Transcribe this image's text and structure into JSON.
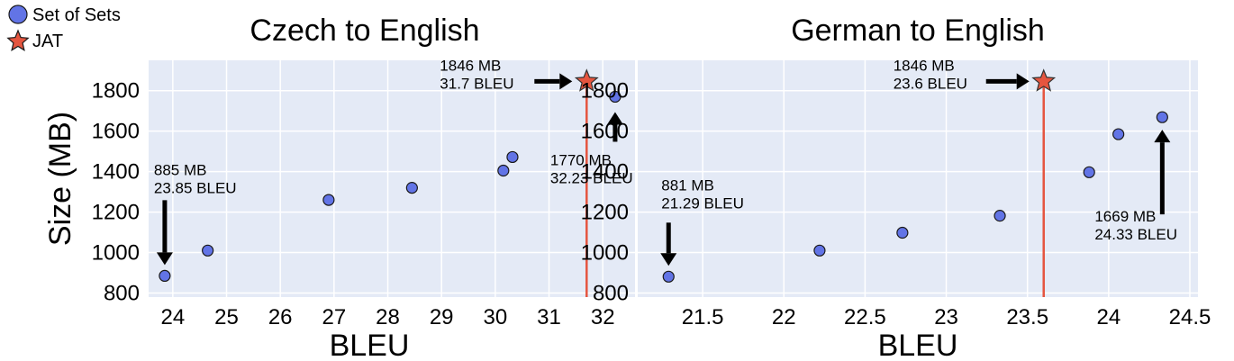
{
  "legend": {
    "items": [
      {
        "label": "Set of Sets",
        "color": "#6274e6",
        "marker": "circle"
      },
      {
        "label": "JAT",
        "color": "#e5553f",
        "marker": "star"
      }
    ]
  },
  "chart_data": [
    {
      "type": "scatter",
      "title": "Czech to English",
      "xlabel": "BLEU",
      "ylabel": "Size (MB)",
      "xlim": [
        23.55,
        32.6
      ],
      "ylim": [
        780,
        1950
      ],
      "xticks": [
        24,
        25,
        26,
        27,
        28,
        29,
        30,
        31,
        32
      ],
      "xtick_labels": [
        "24",
        "25",
        "26",
        "27",
        "28",
        "29",
        "30",
        "31",
        "32"
      ],
      "yticks": [
        800,
        1000,
        1200,
        1400,
        1600,
        1800
      ],
      "ytick_labels": [
        "800",
        "1000",
        "1200",
        "1400",
        "1600",
        "1800"
      ],
      "grid": true,
      "series": [
        {
          "name": "Set of Sets",
          "marker": "circle",
          "color": "#6274e6",
          "x": [
            23.85,
            24.65,
            26.9,
            28.45,
            30.15,
            30.32,
            32.23
          ],
          "y": [
            885,
            1010,
            1260,
            1320,
            1405,
            1472,
            1770
          ]
        },
        {
          "name": "JAT",
          "marker": "star",
          "color": "#e5553f",
          "x": [
            31.7
          ],
          "y": [
            1846
          ]
        }
      ],
      "vline": {
        "x": 31.7,
        "color": "#e5553f"
      },
      "annotations": [
        {
          "lines": [
            "885 MB",
            "23.85 BLEU"
          ],
          "target": [
            23.85,
            885
          ],
          "arrow": "down"
        },
        {
          "lines": [
            "1770 MB",
            "32.23 BLEU"
          ],
          "target": [
            32.23,
            1770
          ],
          "arrow": "up"
        },
        {
          "lines": [
            "1846 MB",
            "31.7 BLEU"
          ],
          "target": [
            31.7,
            1846
          ],
          "arrow": "right"
        }
      ]
    },
    {
      "type": "scatter",
      "title": "German to English",
      "xlabel": "BLEU",
      "ylabel": "",
      "xlim": [
        21.1,
        24.55
      ],
      "ylim": [
        780,
        1950
      ],
      "xticks": [
        21.5,
        22,
        22.5,
        23,
        23.5,
        24,
        24.5
      ],
      "xtick_labels": [
        "21.5",
        "22",
        "22.5",
        "23",
        "23.5",
        "24",
        "24.5"
      ],
      "yticks": [
        800,
        1000,
        1200,
        1400,
        1600,
        1800
      ],
      "ytick_labels": [
        "800",
        "1000",
        "1200",
        "1400",
        "1600",
        "1800"
      ],
      "grid": true,
      "series": [
        {
          "name": "Set of Sets",
          "marker": "circle",
          "color": "#6274e6",
          "x": [
            21.29,
            22.22,
            22.73,
            23.33,
            23.88,
            24.06,
            24.33
          ],
          "y": [
            881,
            1010,
            1098,
            1182,
            1397,
            1585,
            1669
          ]
        },
        {
          "name": "JAT",
          "marker": "star",
          "color": "#e5553f",
          "x": [
            23.6
          ],
          "y": [
            1846
          ]
        }
      ],
      "vline": {
        "x": 23.6,
        "color": "#e5553f"
      },
      "annotations": [
        {
          "lines": [
            "881 MB",
            "21.29 BLEU"
          ],
          "target": [
            21.29,
            881
          ],
          "arrow": "down"
        },
        {
          "lines": [
            "1669 MB",
            "24.33 BLEU"
          ],
          "target": [
            24.33,
            1669
          ],
          "arrow": "up"
        },
        {
          "lines": [
            "1846 MB",
            "23.6 BLEU"
          ],
          "target": [
            23.6,
            1846
          ],
          "arrow": "right"
        }
      ]
    }
  ]
}
